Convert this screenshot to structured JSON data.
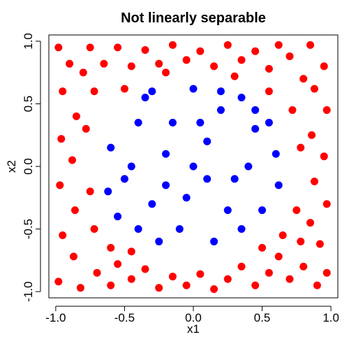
{
  "chart_data": {
    "type": "scatter",
    "title": "Not linearly separable",
    "xlabel": "x1",
    "ylabel": "x2",
    "xlim": [
      -1.05,
      1.05
    ],
    "ylim": [
      -1.05,
      1.05
    ],
    "xticks": [
      "-1.0",
      "-0.5",
      "0.0",
      "0.5",
      "1.0"
    ],
    "xtick_values": [
      -1.0,
      -0.5,
      0.0,
      0.5,
      1.0
    ],
    "yticks": [
      "-1.0",
      "-0.5",
      "0.0",
      "0.5",
      "1.0"
    ],
    "ytick_values": [
      -1.0,
      -0.5,
      0.0,
      0.5,
      1.0
    ],
    "grid": false,
    "legend": "none",
    "boundary": {
      "shape": "circle",
      "radius": 0.7
    },
    "series": [
      {
        "color": "#ff0000",
        "region": "outside circle",
        "points": [
          [
            -0.98,
            0.95
          ],
          [
            -0.9,
            0.82
          ],
          [
            -0.95,
            0.6
          ],
          [
            -0.85,
            0.4
          ],
          [
            -0.96,
            0.22
          ],
          [
            -0.88,
            0.05
          ],
          [
            -0.97,
            -0.15
          ],
          [
            -0.86,
            -0.35
          ],
          [
            -0.95,
            -0.55
          ],
          [
            -0.87,
            -0.72
          ],
          [
            -0.98,
            -0.92
          ],
          [
            -0.82,
            -0.97
          ],
          [
            -0.7,
            -0.85
          ],
          [
            -0.6,
            -0.95
          ],
          [
            -0.55,
            -0.78
          ],
          [
            -0.45,
            -0.9
          ],
          [
            -0.35,
            -0.82
          ],
          [
            -0.25,
            -0.97
          ],
          [
            -0.15,
            -0.88
          ],
          [
            -0.05,
            -0.95
          ],
          [
            0.05,
            -0.86
          ],
          [
            0.15,
            -0.98
          ],
          [
            0.25,
            -0.9
          ],
          [
            0.35,
            -0.8
          ],
          [
            0.45,
            -0.95
          ],
          [
            0.55,
            -0.85
          ],
          [
            0.62,
            -0.72
          ],
          [
            0.7,
            -0.9
          ],
          [
            0.8,
            -0.8
          ],
          [
            0.9,
            -0.95
          ],
          [
            0.97,
            -0.85
          ],
          [
            0.92,
            -0.62
          ],
          [
            0.85,
            -0.45
          ],
          [
            0.97,
            -0.3
          ],
          [
            0.88,
            -0.12
          ],
          [
            0.95,
            0.08
          ],
          [
            0.86,
            0.25
          ],
          [
            0.97,
            0.45
          ],
          [
            0.88,
            0.62
          ],
          [
            0.95,
            0.8
          ],
          [
            0.85,
            0.97
          ],
          [
            0.7,
            0.88
          ],
          [
            0.62,
            0.97
          ],
          [
            0.55,
            0.78
          ],
          [
            0.45,
            0.92
          ],
          [
            0.35,
            0.85
          ],
          [
            0.25,
            0.97
          ],
          [
            0.15,
            0.8
          ],
          [
            0.05,
            0.92
          ],
          [
            -0.05,
            0.85
          ],
          [
            -0.15,
            0.97
          ],
          [
            -0.25,
            0.82
          ],
          [
            -0.35,
            0.93
          ],
          [
            -0.45,
            0.8
          ],
          [
            -0.55,
            0.95
          ],
          [
            -0.65,
            0.82
          ],
          [
            -0.75,
            0.95
          ],
          [
            -0.72,
            0.6
          ],
          [
            -0.78,
            0.3
          ],
          [
            -0.75,
            -0.2
          ],
          [
            -0.72,
            -0.5
          ],
          [
            -0.6,
            -0.65
          ],
          [
            -0.45,
            -0.68
          ],
          [
            0.5,
            -0.65
          ],
          [
            0.65,
            -0.55
          ],
          [
            0.75,
            -0.35
          ],
          [
            0.78,
            0.15
          ],
          [
            0.72,
            0.45
          ],
          [
            0.55,
            0.6
          ],
          [
            0.3,
            0.72
          ],
          [
            -0.2,
            0.75
          ],
          [
            -0.5,
            0.62
          ],
          [
            0.78,
            -0.6
          ],
          [
            -0.8,
            0.75
          ],
          [
            0.8,
            0.7
          ]
        ]
      },
      {
        "color": "#0000ff",
        "region": "inside circle",
        "points": [
          [
            0.0,
            0.0
          ],
          [
            0.1,
            0.2
          ],
          [
            -0.2,
            0.1
          ],
          [
            0.3,
            -0.1
          ],
          [
            -0.3,
            -0.3
          ],
          [
            0.2,
            0.45
          ],
          [
            -0.4,
            0.35
          ],
          [
            0.45,
            0.3
          ],
          [
            -0.5,
            -0.1
          ],
          [
            0.5,
            -0.35
          ],
          [
            -0.1,
            -0.5
          ],
          [
            0.15,
            -0.6
          ],
          [
            -0.35,
            0.55
          ],
          [
            0.35,
            0.55
          ],
          [
            -0.6,
            0.15
          ],
          [
            0.6,
            0.1
          ],
          [
            -0.55,
            -0.4
          ],
          [
            0.0,
            0.62
          ],
          [
            -0.15,
            0.35
          ],
          [
            0.25,
            -0.35
          ],
          [
            -0.25,
            -0.6
          ],
          [
            0.4,
            0.0
          ],
          [
            -0.05,
            -0.25
          ],
          [
            0.1,
            -0.1
          ],
          [
            -0.45,
            0.0
          ],
          [
            0.55,
            0.35
          ],
          [
            -0.3,
            0.6
          ],
          [
            0.2,
            0.6
          ],
          [
            -0.62,
            -0.2
          ],
          [
            0.62,
            -0.15
          ],
          [
            0.05,
            0.35
          ],
          [
            -0.2,
            -0.15
          ],
          [
            0.35,
            -0.5
          ],
          [
            -0.4,
            -0.5
          ],
          [
            0.45,
            0.45
          ]
        ]
      }
    ]
  }
}
